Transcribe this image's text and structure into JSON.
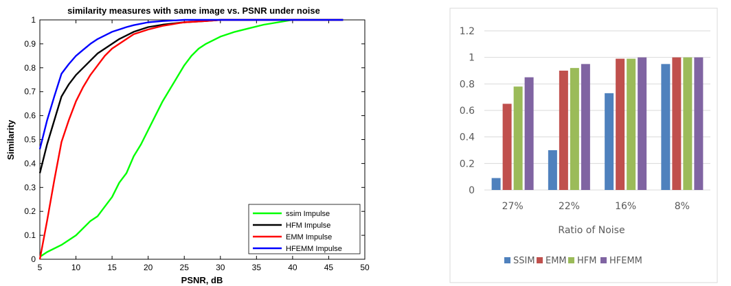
{
  "chart_data": [
    {
      "type": "line",
      "title": "similarity measures with same image vs. PSNR under noise",
      "xlabel": "PSNR, dB",
      "ylabel": "Similarity",
      "xlim": [
        5,
        50
      ],
      "ylim": [
        0,
        1
      ],
      "xticks": [
        "5",
        "10",
        "15",
        "20",
        "25",
        "30",
        "35",
        "40",
        "45",
        "50"
      ],
      "yticks": [
        "0",
        "0.1",
        "0.2",
        "0.3",
        "0.4",
        "0.5",
        "0.6",
        "0.7",
        "0.8",
        "0.9",
        "1"
      ],
      "grid": false,
      "legend_position": "bottom-right",
      "series": [
        {
          "name": "ssim Impulse",
          "color": "#00ff00",
          "points": [
            [
              5,
              0.01
            ],
            [
              6,
              0.03
            ],
            [
              8,
              0.06
            ],
            [
              10,
              0.1
            ],
            [
              12,
              0.16
            ],
            [
              13,
              0.18
            ],
            [
              14,
              0.22
            ],
            [
              15,
              0.26
            ],
            [
              16,
              0.32
            ],
            [
              17,
              0.36
            ],
            [
              18,
              0.43
            ],
            [
              19,
              0.48
            ],
            [
              20,
              0.54
            ],
            [
              21,
              0.6
            ],
            [
              22,
              0.66
            ],
            [
              23,
              0.71
            ],
            [
              24,
              0.76
            ],
            [
              25,
              0.81
            ],
            [
              26,
              0.85
            ],
            [
              27,
              0.88
            ],
            [
              28,
              0.9
            ],
            [
              29,
              0.915
            ],
            [
              30,
              0.93
            ],
            [
              32,
              0.95
            ],
            [
              34,
              0.965
            ],
            [
              36,
              0.98
            ],
            [
              38,
              0.99
            ],
            [
              40,
              1.0
            ],
            [
              47,
              1.0
            ]
          ]
        },
        {
          "name": "HFM Impulse",
          "color": "#000000",
          "points": [
            [
              5,
              0.36
            ],
            [
              6,
              0.48
            ],
            [
              7,
              0.58
            ],
            [
              8,
              0.68
            ],
            [
              9,
              0.73
            ],
            [
              10,
              0.77
            ],
            [
              11,
              0.8
            ],
            [
              12,
              0.83
            ],
            [
              13,
              0.86
            ],
            [
              14,
              0.88
            ],
            [
              15,
              0.9
            ],
            [
              16,
              0.92
            ],
            [
              17,
              0.935
            ],
            [
              18,
              0.95
            ],
            [
              20,
              0.97
            ],
            [
              22,
              0.98
            ],
            [
              25,
              0.99
            ],
            [
              28,
              0.995
            ],
            [
              30,
              1.0
            ],
            [
              47,
              1.0
            ]
          ]
        },
        {
          "name": "EMM Impulse",
          "color": "#ff0000",
          "points": [
            [
              5,
              0.0
            ],
            [
              6,
              0.16
            ],
            [
              7,
              0.33
            ],
            [
              8,
              0.49
            ],
            [
              9,
              0.58
            ],
            [
              10,
              0.66
            ],
            [
              11,
              0.72
            ],
            [
              12,
              0.77
            ],
            [
              13,
              0.81
            ],
            [
              14,
              0.85
            ],
            [
              15,
              0.88
            ],
            [
              16,
              0.9
            ],
            [
              17,
              0.92
            ],
            [
              18,
              0.94
            ],
            [
              20,
              0.96
            ],
            [
              22,
              0.975
            ],
            [
              25,
              0.99
            ],
            [
              28,
              0.995
            ],
            [
              30,
              1.0
            ],
            [
              47,
              1.0
            ]
          ]
        },
        {
          "name": "HFEMM Impulse",
          "color": "#0000ff",
          "points": [
            [
              5,
              0.46
            ],
            [
              6,
              0.58
            ],
            [
              7,
              0.68
            ],
            [
              8,
              0.775
            ],
            [
              9,
              0.815
            ],
            [
              10,
              0.85
            ],
            [
              11,
              0.875
            ],
            [
              12,
              0.9
            ],
            [
              13,
              0.92
            ],
            [
              14,
              0.935
            ],
            [
              15,
              0.95
            ],
            [
              16,
              0.96
            ],
            [
              17,
              0.97
            ],
            [
              18,
              0.978
            ],
            [
              20,
              0.99
            ],
            [
              22,
              0.995
            ],
            [
              25,
              1.0
            ],
            [
              47,
              1.0
            ]
          ]
        }
      ]
    },
    {
      "type": "bar",
      "title": "",
      "xlabel": "Ratio of Noise",
      "ylabel": "",
      "ylim": [
        0,
        1.2
      ],
      "yticks": [
        "0",
        "0.2",
        "0.4",
        "0.6",
        "0.8",
        "1",
        "1.2"
      ],
      "grid": true,
      "legend_position": "bottom",
      "categories": [
        "27%",
        "22%",
        "16%",
        "8%"
      ],
      "series": [
        {
          "name": "SSIM",
          "color": "#4f81bd",
          "values": [
            0.09,
            0.3,
            0.73,
            0.95
          ]
        },
        {
          "name": "EMM",
          "color": "#c0504d",
          "values": [
            0.65,
            0.9,
            0.99,
            1.0
          ]
        },
        {
          "name": "HFM",
          "color": "#9bbb59",
          "values": [
            0.78,
            0.92,
            0.99,
            1.0
          ]
        },
        {
          "name": "HFEMM",
          "color": "#8064a2",
          "values": [
            0.85,
            0.95,
            1.0,
            1.0
          ]
        }
      ]
    }
  ]
}
